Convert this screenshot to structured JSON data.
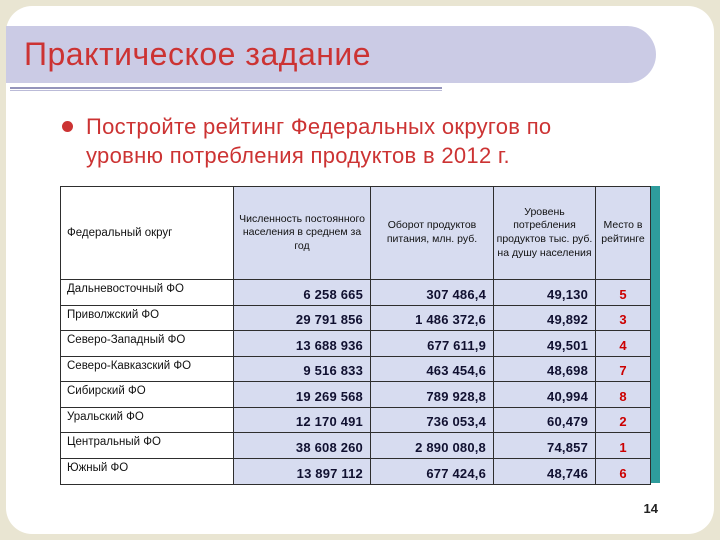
{
  "slide": {
    "title": "Практическое задание",
    "task_text": "Постройте рейтинг Федеральных округов по уровню потребления продуктов в 2012 г.",
    "page_number": "14"
  },
  "table": {
    "headers": [
      "Федеральный округ",
      "Численность постоянного населения в среднем за год",
      "Оборот продуктов питания, млн. руб.",
      "Уровень потребления продуктов тыс. руб. на душу населения",
      "Место в рейтинге"
    ],
    "rows": [
      {
        "district": "Дальневосточный ФО",
        "population": "6 258 665",
        "turnover": "307 486,4",
        "consumption": "49,130",
        "rank": "5"
      },
      {
        "district": "Приволжский ФО",
        "population": "29 791 856",
        "turnover": "1 486 372,6",
        "consumption": "49,892",
        "rank": "3"
      },
      {
        "district": "Северо-Западный ФО",
        "population": "13 688 936",
        "turnover": "677 611,9",
        "consumption": "49,501",
        "rank": "4"
      },
      {
        "district": "Северо-Кавказский ФО",
        "population": "9 516 833",
        "turnover": "463 454,6",
        "consumption": "48,698",
        "rank": "7"
      },
      {
        "district": "Сибирский ФО",
        "population": "19 269 568",
        "turnover": "789 928,8",
        "consumption": "40,994",
        "rank": "8"
      },
      {
        "district": "Уральский ФО",
        "population": "12 170 491",
        "turnover": "736 053,4",
        "consumption": "60,479",
        "rank": "2"
      },
      {
        "district": "Центральный ФО",
        "population": "38 608 260",
        "turnover": "2 890 080,8",
        "consumption": "74,857",
        "rank": "1"
      },
      {
        "district": "Южный ФО",
        "population": "13 897 112",
        "turnover": "677 424,6",
        "consumption": "48,746",
        "rank": "6"
      }
    ]
  },
  "colors": {
    "slide-beige": "#e9e5d2",
    "banner-lavender": "#cbcbe5",
    "accent-red": "#cc3333",
    "rank-red": "#cc0000",
    "cell-blue": "#d7dcf0",
    "number-ink": "#101030",
    "border-dark": "#2e2e2e",
    "teal-accent": "#2e9c9c"
  }
}
